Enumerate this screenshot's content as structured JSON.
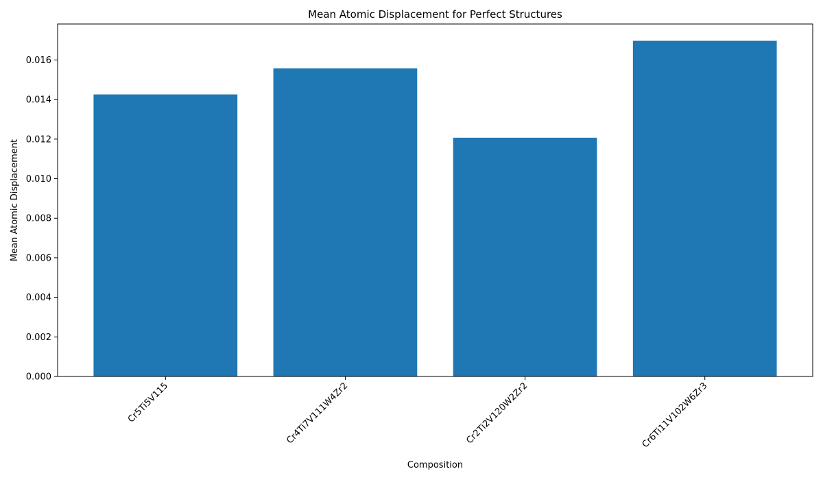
{
  "chart_data": {
    "type": "bar",
    "title": "Mean Atomic Displacement for Perfect Structures",
    "xlabel": "Composition",
    "ylabel": "Mean Atomic Displacement",
    "categories": [
      "Cr5Ti5V115",
      "Cr4Ti7V111W4Zr2",
      "Cr2Ti2V120W2Zr2",
      "Cr6Ti11V102W6Zr3"
    ],
    "values": [
      0.01426,
      0.01558,
      0.01207,
      0.01697
    ],
    "ylim": [
      0,
      0.01782
    ],
    "yticks": [
      "0.000",
      "0.002",
      "0.004",
      "0.006",
      "0.008",
      "0.010",
      "0.012",
      "0.014",
      "0.016"
    ],
    "bar_color": "#1f77b4",
    "grid": false,
    "legend": "none"
  }
}
